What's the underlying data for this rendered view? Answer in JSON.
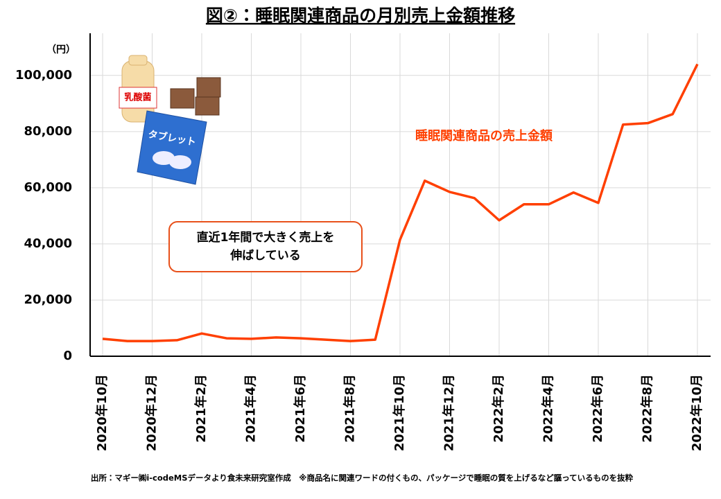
{
  "chart_data": {
    "type": "line",
    "title": "図②：睡眠関連商品の月別売上金額推移",
    "y_unit_label": "（円）",
    "categories": [
      "2020年10月",
      null,
      "2020年12月",
      null,
      "2021年2月",
      null,
      "2021年4月",
      null,
      "2021年6月",
      null,
      "2021年8月",
      null,
      "2021年10月",
      null,
      "2021年12月",
      null,
      "2022年2月",
      null,
      "2022年4月",
      null,
      "2022年6月",
      null,
      "2022年8月",
      null,
      "2022年10月"
    ],
    "series": [
      {
        "name": "睡眠関連商品の売上金額",
        "color": "#ff3f00",
        "values": [
          6200,
          5400,
          5400,
          5700,
          8100,
          6400,
          6200,
          6700,
          6400,
          5900,
          5400,
          5900,
          41500,
          62500,
          58500,
          56300,
          48400,
          54100,
          54100,
          58300,
          54600,
          82500,
          83000,
          86200,
          104000
        ]
      }
    ],
    "ylim": [
      0,
      115000
    ],
    "yticks": [
      0,
      {
        "value": 20000,
        "label": "20,000"
      },
      {
        "value": 40000,
        "label": "40,000"
      },
      {
        "value": 60000,
        "label": "60,000"
      },
      {
        "value": 80000,
        "label": "80,000"
      },
      {
        "value": 100000,
        "label": "100,000"
      }
    ],
    "grid": true,
    "annotation_lines": [
      "直近1年間で大きく売上を",
      "伸ばしている"
    ],
    "illustration_labels": [
      "乳酸菌",
      "タブレット"
    ],
    "source_note": "出所：マギー㈱i-codeMSデータより食未来研究室作成　※商品名に関連ワードの付くもの、パッケージで睡眠の質を上げるなど謳っているものを抜粋"
  }
}
